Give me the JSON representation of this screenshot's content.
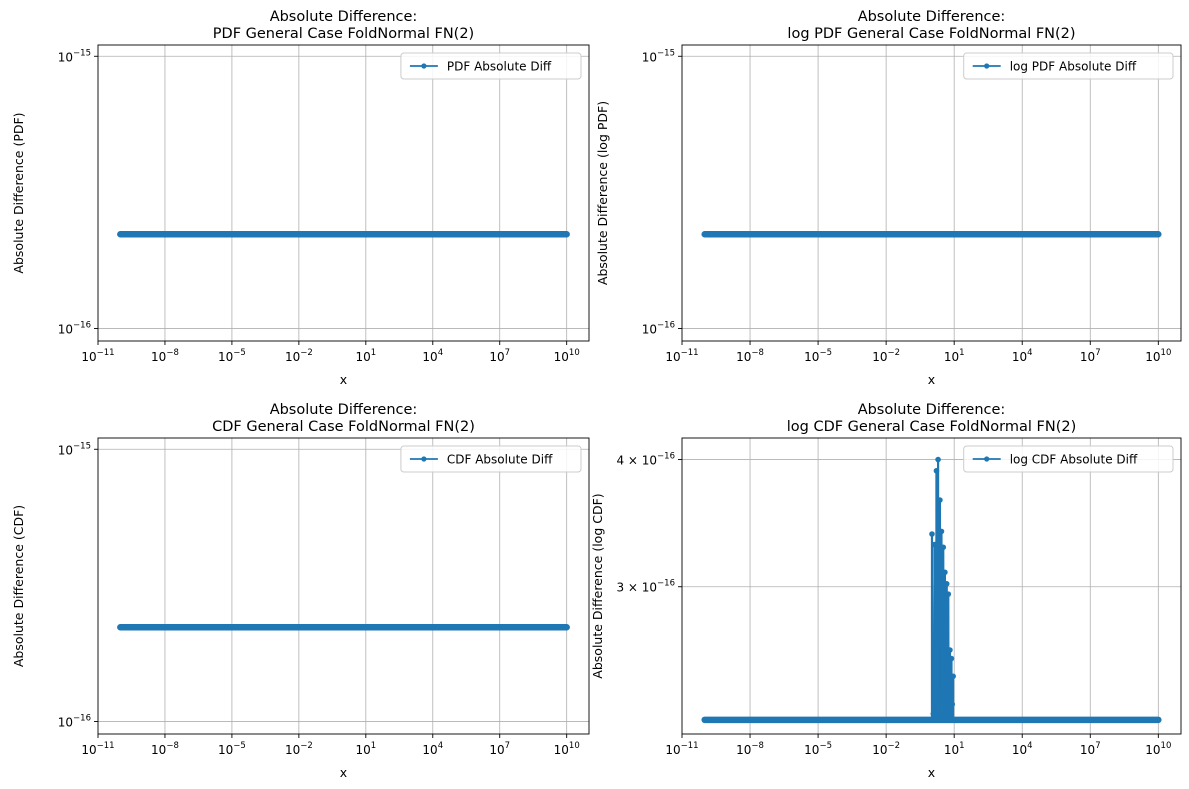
{
  "figure": {
    "background": "#ffffff"
  },
  "style": {
    "series_color": "#1f77b4",
    "grid_color": "#b0b0b0",
    "spine_color": "#000000"
  },
  "chart_data": [
    {
      "type": "line",
      "title_line1": "Absolute Difference:",
      "title_line2": "PDF General Case FoldNormal FN(2)",
      "xlabel": "x",
      "ylabel": "Absolute Difference (PDF)",
      "xscale": "log",
      "yscale": "log",
      "xlim": [
        1e-11,
        100000000000.0
      ],
      "ylim": [
        9e-17,
        1.1e-15
      ],
      "x_ticks": [
        {
          "base": "10",
          "exp": "−11",
          "value": 1e-11
        },
        {
          "base": "10",
          "exp": "−8",
          "value": 1e-08
        },
        {
          "base": "10",
          "exp": "−5",
          "value": 1e-05
        },
        {
          "base": "10",
          "exp": "−2",
          "value": 0.01
        },
        {
          "base": "10",
          "exp": "1",
          "value": 10
        },
        {
          "base": "10",
          "exp": "4",
          "value": 10000.0
        },
        {
          "base": "10",
          "exp": "7",
          "value": 10000000.0
        },
        {
          "base": "10",
          "exp": "10",
          "value": 10000000000.0
        }
      ],
      "y_ticks": [
        {
          "base": "10",
          "exp": "−15",
          "value": 1e-15
        },
        {
          "base": "10",
          "exp": "−16",
          "value": 1e-16
        }
      ],
      "grid": true,
      "legend_position": "upper right",
      "series": [
        {
          "name": "PDF Absolute Diff",
          "x_range": [
            1e-10,
            10000000000.0
          ],
          "constant_y": 2.22e-16,
          "spikes": []
        }
      ]
    },
    {
      "type": "line",
      "title_line1": "Absolute Difference:",
      "title_line2": "log PDF General Case FoldNormal FN(2)",
      "xlabel": "x",
      "ylabel": "Absolute Difference (log PDF)",
      "xscale": "log",
      "yscale": "log",
      "xlim": [
        1e-11,
        100000000000.0
      ],
      "ylim": [
        9e-17,
        1.1e-15
      ],
      "x_ticks": [
        {
          "base": "10",
          "exp": "−11",
          "value": 1e-11
        },
        {
          "base": "10",
          "exp": "−8",
          "value": 1e-08
        },
        {
          "base": "10",
          "exp": "−5",
          "value": 1e-05
        },
        {
          "base": "10",
          "exp": "−2",
          "value": 0.01
        },
        {
          "base": "10",
          "exp": "1",
          "value": 10
        },
        {
          "base": "10",
          "exp": "4",
          "value": 10000.0
        },
        {
          "base": "10",
          "exp": "7",
          "value": 10000000.0
        },
        {
          "base": "10",
          "exp": "10",
          "value": 10000000000.0
        }
      ],
      "y_ticks": [
        {
          "base": "10",
          "exp": "−15",
          "value": 1e-15
        },
        {
          "base": "10",
          "exp": "−16",
          "value": 1e-16
        }
      ],
      "grid": true,
      "legend_position": "upper right",
      "series": [
        {
          "name": "log PDF Absolute Diff",
          "x_range": [
            1e-10,
            10000000000.0
          ],
          "constant_y": 2.22e-16,
          "spikes": []
        }
      ]
    },
    {
      "type": "line",
      "title_line1": "Absolute Difference:",
      "title_line2": "CDF General Case FoldNormal FN(2)",
      "xlabel": "x",
      "ylabel": "Absolute Difference (CDF)",
      "xscale": "log",
      "yscale": "log",
      "xlim": [
        1e-11,
        100000000000.0
      ],
      "ylim": [
        9e-17,
        1.1e-15
      ],
      "x_ticks": [
        {
          "base": "10",
          "exp": "−11",
          "value": 1e-11
        },
        {
          "base": "10",
          "exp": "−8",
          "value": 1e-08
        },
        {
          "base": "10",
          "exp": "−5",
          "value": 1e-05
        },
        {
          "base": "10",
          "exp": "−2",
          "value": 0.01
        },
        {
          "base": "10",
          "exp": "1",
          "value": 10
        },
        {
          "base": "10",
          "exp": "4",
          "value": 10000.0
        },
        {
          "base": "10",
          "exp": "7",
          "value": 10000000.0
        },
        {
          "base": "10",
          "exp": "10",
          "value": 10000000000.0
        }
      ],
      "y_ticks": [
        {
          "base": "10",
          "exp": "−15",
          "value": 1e-15
        },
        {
          "base": "10",
          "exp": "−16",
          "value": 1e-16
        }
      ],
      "grid": true,
      "legend_position": "upper right",
      "series": [
        {
          "name": "CDF Absolute Diff",
          "x_range": [
            1e-10,
            10000000000.0
          ],
          "constant_y": 2.22e-16,
          "spikes": []
        }
      ]
    },
    {
      "type": "line",
      "title_line1": "Absolute Difference:",
      "title_line2": "log CDF General Case FoldNormal FN(2)",
      "xlabel": "x",
      "ylabel": "Absolute Difference (log CDF)",
      "xscale": "log",
      "yscale": "log",
      "xlim": [
        1e-11,
        100000000000.0
      ],
      "ylim": [
        2.15e-16,
        4.2e-16
      ],
      "x_ticks": [
        {
          "base": "10",
          "exp": "−11",
          "value": 1e-11
        },
        {
          "base": "10",
          "exp": "−8",
          "value": 1e-08
        },
        {
          "base": "10",
          "exp": "−5",
          "value": 1e-05
        },
        {
          "base": "10",
          "exp": "−2",
          "value": 0.01
        },
        {
          "base": "10",
          "exp": "1",
          "value": 10
        },
        {
          "base": "10",
          "exp": "4",
          "value": 10000.0
        },
        {
          "base": "10",
          "exp": "7",
          "value": 10000000.0
        },
        {
          "base": "10",
          "exp": "10",
          "value": 10000000000.0
        }
      ],
      "y_ticks": [
        {
          "base": "4 × 10",
          "exp": "−16",
          "value": 4e-16
        },
        {
          "base": "3 × 10",
          "exp": "−16",
          "value": 3e-16
        }
      ],
      "grid": true,
      "legend_position": "upper right",
      "series": [
        {
          "name": "log CDF Absolute Diff",
          "x_range": [
            1e-10,
            10000000000.0
          ],
          "constant_y": 2.22e-16,
          "spikes": [
            {
              "x": 1.05,
              "y": 3.38e-16
            },
            {
              "x": 1.2,
              "y": 2.25e-16
            },
            {
              "x": 1.35,
              "y": 3.3e-16
            },
            {
              "x": 1.5,
              "y": 2.3e-16
            },
            {
              "x": 1.65,
              "y": 3.9e-16
            },
            {
              "x": 1.8,
              "y": 2.25e-16
            },
            {
              "x": 1.95,
              "y": 4e-16
            },
            {
              "x": 2.15,
              "y": 2.4e-16
            },
            {
              "x": 2.35,
              "y": 3.65e-16
            },
            {
              "x": 2.55,
              "y": 2.3e-16
            },
            {
              "x": 2.75,
              "y": 3.4e-16
            },
            {
              "x": 3.0,
              "y": 2.25e-16
            },
            {
              "x": 3.3,
              "y": 3.28e-16
            },
            {
              "x": 3.6,
              "y": 2.3e-16
            },
            {
              "x": 3.9,
              "y": 3.1e-16
            },
            {
              "x": 4.3,
              "y": 2.3e-16
            },
            {
              "x": 4.7,
              "y": 3.02e-16
            },
            {
              "x": 5.1,
              "y": 2.4e-16
            },
            {
              "x": 5.5,
              "y": 2.95e-16
            },
            {
              "x": 6.0,
              "y": 2.3e-16
            },
            {
              "x": 6.5,
              "y": 2.6e-16
            },
            {
              "x": 7.0,
              "y": 2.25e-16
            },
            {
              "x": 7.6,
              "y": 2.55e-16
            },
            {
              "x": 8.2,
              "y": 2.3e-16
            },
            {
              "x": 9.0,
              "y": 2.45e-16
            }
          ]
        }
      ]
    }
  ]
}
